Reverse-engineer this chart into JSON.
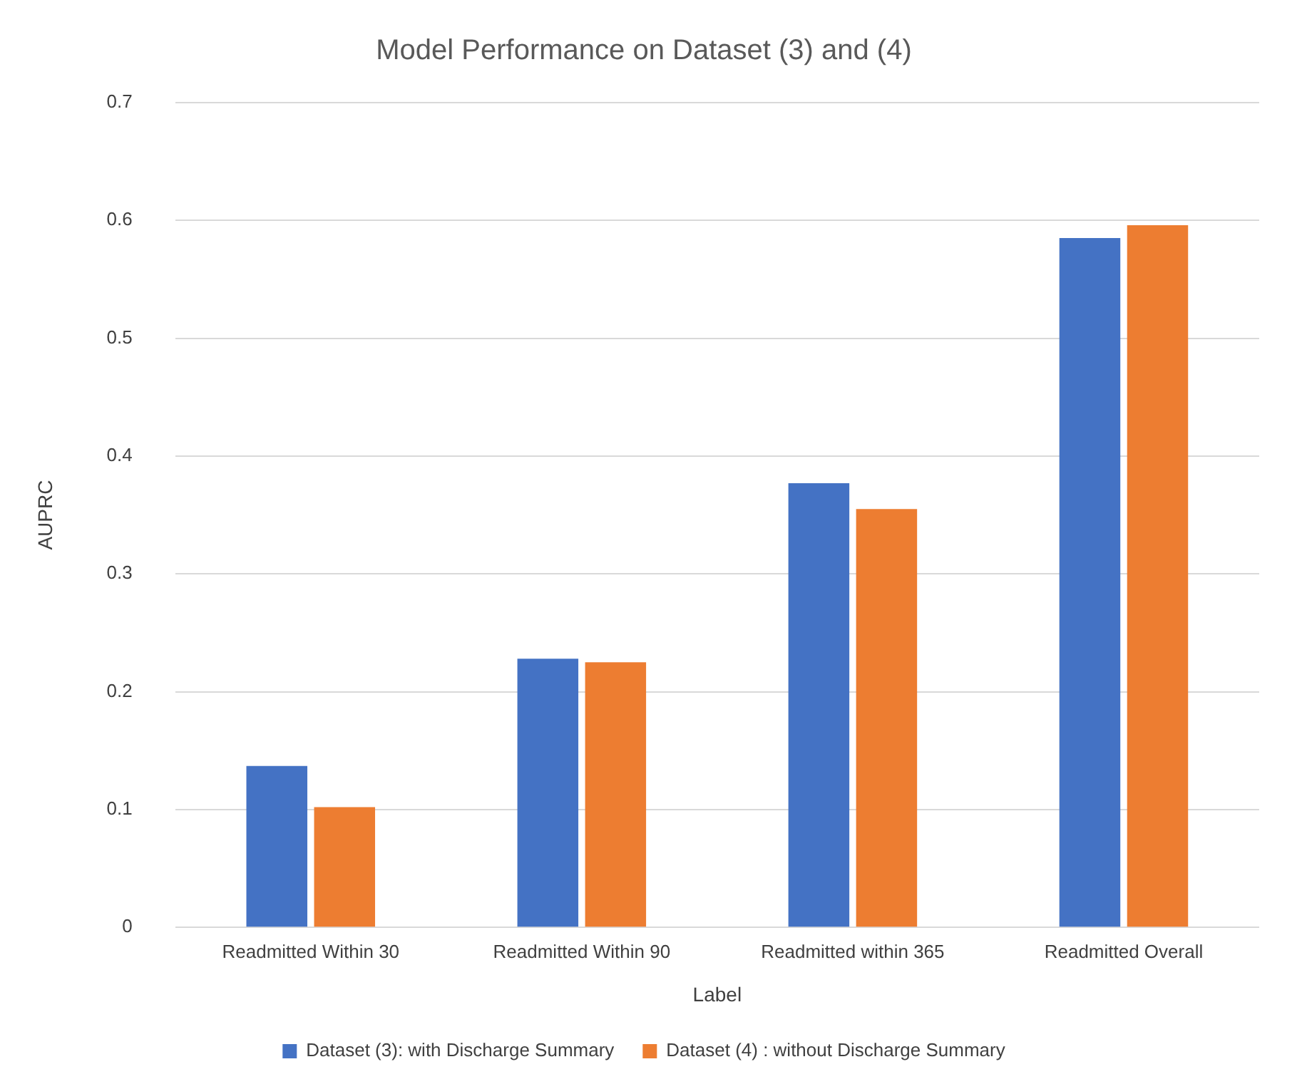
{
  "chart_data": {
    "type": "bar",
    "title": "Model Performance on Dataset (3) and (4)",
    "xlabel": "Label",
    "ylabel": "AUPRC",
    "categories": [
      "Readmitted Within 30",
      "Readmitted Within 90",
      "Readmitted within 365",
      "Readmitted Overall"
    ],
    "series": [
      {
        "name": "Dataset (3): with Discharge Summary",
        "color": "#4472c4",
        "values": [
          0.137,
          0.228,
          0.377,
          0.585
        ]
      },
      {
        "name": "Dataset (4) : without Discharge Summary",
        "color": "#ed7d31",
        "values": [
          0.102,
          0.225,
          0.355,
          0.596
        ]
      }
    ],
    "ylim": [
      0,
      0.7
    ],
    "yticks": [
      0,
      0.1,
      0.2,
      0.3,
      0.4,
      0.5,
      0.6,
      0.7
    ],
    "grid": "y",
    "legend": "bottom"
  }
}
